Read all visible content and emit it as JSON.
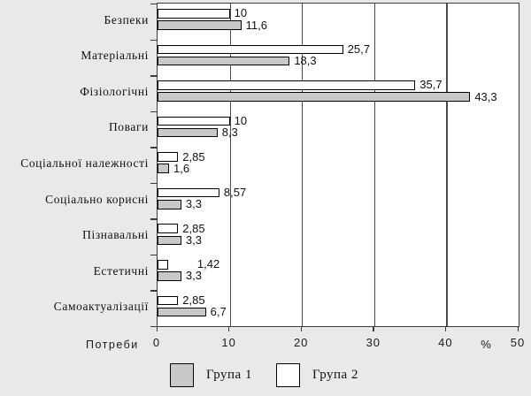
{
  "chart_data": {
    "type": "bar",
    "orientation": "horizontal",
    "categories": [
      "Безпеки",
      "Матеріальні",
      "Фізіологічні",
      "Поваги",
      "Соціальної належності",
      "Соціально корисні",
      "Пізнавальні",
      "Естетичні",
      "Самоактуалізації"
    ],
    "series": [
      {
        "name": "Група 1",
        "color": "#c8c8c8",
        "values": [
          11.6,
          18.3,
          43.3,
          8.3,
          1.6,
          3.3,
          3.3,
          3.3,
          6.7
        ],
        "value_labels": [
          "11,6",
          "18,3",
          "43,3",
          "8,3",
          "1,6",
          "3,3",
          "3,3",
          "3,3",
          "6,7"
        ]
      },
      {
        "name": "Група 2",
        "color": "#ffffff",
        "values": [
          10,
          25.7,
          35.7,
          10,
          2.85,
          8.57,
          2.85,
          1.42,
          2.85
        ],
        "value_labels": [
          "10",
          "25,7",
          "35,7",
          "10",
          "2,85",
          "8,57",
          "2,85",
          "1,42",
          "2,85"
        ]
      }
    ],
    "xlim": [
      0,
      50
    ],
    "x_ticks": [
      "0",
      "10",
      "20",
      "30",
      "40",
      "50"
    ],
    "x_axis_title": "Потреби",
    "x_unit_label": "%",
    "grid": true,
    "legend_position": "bottom",
    "bar_order": "Група 2 (white) drawn above Група 1 (grey) within each category"
  }
}
